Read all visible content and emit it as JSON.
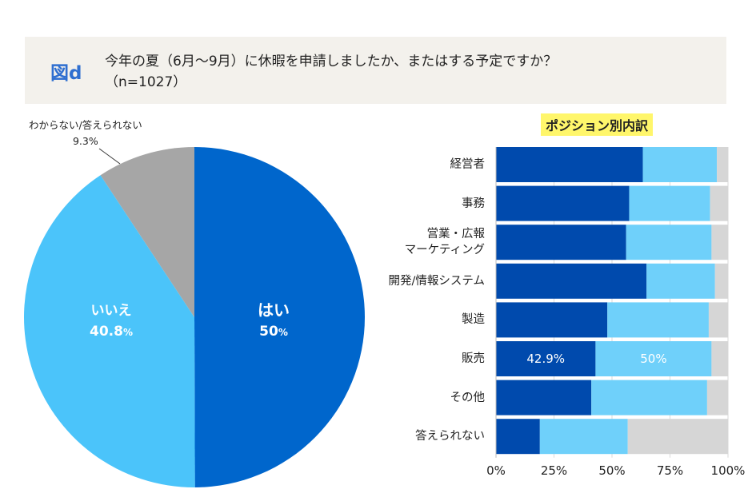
{
  "header": {
    "figure_label": "図d",
    "title": "今年の夏（6月〜9月）に休暇を申請しましたか、またはする予定ですか？",
    "subtitle": "（n=1027）"
  },
  "chart_data": [
    {
      "type": "pie",
      "slices": [
        {
          "label": "はい",
          "value": 50,
          "value_label": "50",
          "unit": "%",
          "color": "#0066cc"
        },
        {
          "label": "いいえ",
          "value": 40.8,
          "value_label": "40.8",
          "unit": "%",
          "color": "#4bc4fa"
        },
        {
          "label": "わからない/答えられない",
          "value": 9.3,
          "value_label": "9.3%",
          "color": "#a6a6a6"
        }
      ],
      "start": "top",
      "direction": "clockwise"
    },
    {
      "type": "bar",
      "orientation": "horizontal",
      "stacked": "100%",
      "title": "ポジション別内訳",
      "categories": [
        "経営者",
        "事務",
        "営業・広報\nマーケティング",
        "開発/情報システム",
        "製造",
        "販売",
        "その他",
        "答えられない"
      ],
      "series": [
        {
          "values": [
            63.3,
            57.4,
            56.1,
            64.9,
            48.0,
            42.9,
            41.1,
            18.9
          ],
          "color": "#004aad"
        },
        {
          "values": [
            31.9,
            34.9,
            36.8,
            29.5,
            43.7,
            50.0,
            49.9,
            37.9
          ],
          "color": "#6fd0fa"
        },
        {
          "values": [
            4.8,
            7.7,
            7.1,
            5.6,
            8.3,
            7.1,
            9.0,
            43.2
          ],
          "color": "#d6d6d6"
        }
      ],
      "data_labels": [
        {
          "category": "販売",
          "series": 0,
          "text": "42.9%"
        },
        {
          "category": "販売",
          "series": 1,
          "text": "50%"
        }
      ],
      "xticks": [
        "0%",
        "25%",
        "50%",
        "75%",
        "100%"
      ],
      "xlim": [
        0,
        100
      ],
      "grid": true
    }
  ]
}
